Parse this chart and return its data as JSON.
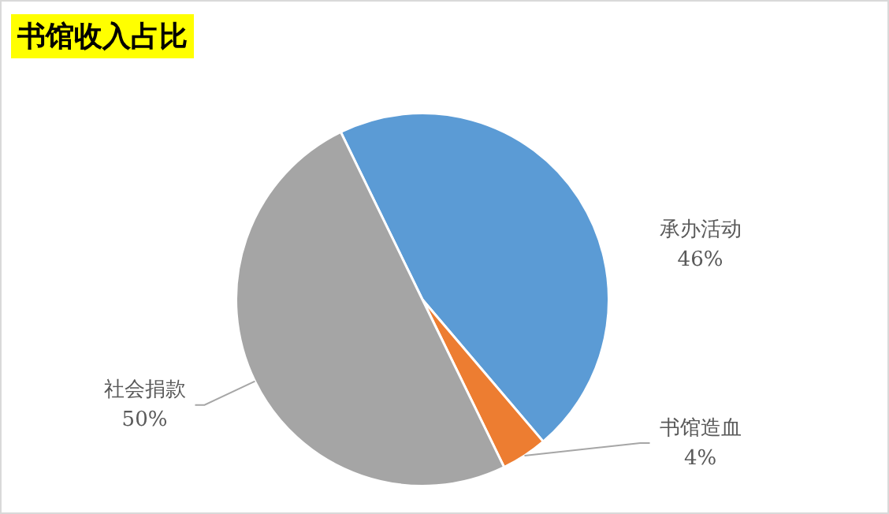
{
  "chart_data": {
    "type": "pie",
    "title": "书馆收入占比",
    "categories": [
      "承办活动",
      "书馆造血",
      "社会捐款"
    ],
    "values": [
      46,
      4,
      50
    ],
    "colors": [
      "#5b9bd5",
      "#ed7d31",
      "#a5a5a5"
    ],
    "value_labels": [
      "46%",
      "4%",
      "50%"
    ],
    "legend": false
  }
}
